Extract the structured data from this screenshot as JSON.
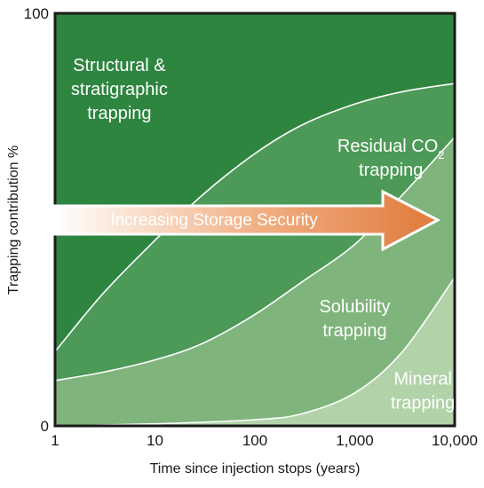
{
  "chart_data": {
    "type": "area",
    "title": "",
    "xlabel": "Time since injection stops (years)",
    "ylabel": "Trapping contribution %",
    "x_scale": "log",
    "xlim": [
      1,
      10000
    ],
    "ylim": [
      0,
      100
    ],
    "x_ticks": [
      "1",
      "10",
      "100",
      "1,000",
      "10,000"
    ],
    "y_ticks": [
      "0",
      "100"
    ],
    "grid": false,
    "boundaries": [
      {
        "x": [
          1,
          3,
          10,
          30,
          100,
          300,
          1000,
          3000,
          10000
        ],
        "y": [
          18,
          32,
          45,
          56,
          66,
          73,
          78,
          81,
          83
        ]
      },
      {
        "x": [
          1,
          3,
          10,
          30,
          100,
          300,
          1000,
          3000,
          10000
        ],
        "y": [
          11,
          13,
          16,
          20,
          27,
          35,
          44,
          56,
          70
        ]
      },
      {
        "x": [
          1,
          10,
          100,
          300,
          1000,
          3000,
          10000
        ],
        "y": [
          0,
          0.5,
          1.5,
          3,
          8,
          18,
          36
        ]
      }
    ],
    "regions": [
      {
        "name": "Structural & stratigraphic trapping",
        "lines": [
          "Structural &",
          "stratigraphic",
          "trapping"
        ],
        "color": "#2e8540"
      },
      {
        "name": "Residual CO2 trapping",
        "lines": [
          "Residual CO",
          "trapping"
        ],
        "subscript": "2",
        "color": "#4d9a58"
      },
      {
        "name": "Solubility trapping",
        "lines": [
          "Solubility",
          "trapping"
        ],
        "color": "#80b47d"
      },
      {
        "name": "Mineral trapping",
        "lines": [
          "Mineral",
          "trapping"
        ],
        "color": "#b2d3aa"
      }
    ],
    "annotation": {
      "text": "Increasing Storage Security",
      "direction": "right",
      "gradient": [
        "#ffffff",
        "#f0ad80",
        "#e07a3c"
      ]
    }
  }
}
